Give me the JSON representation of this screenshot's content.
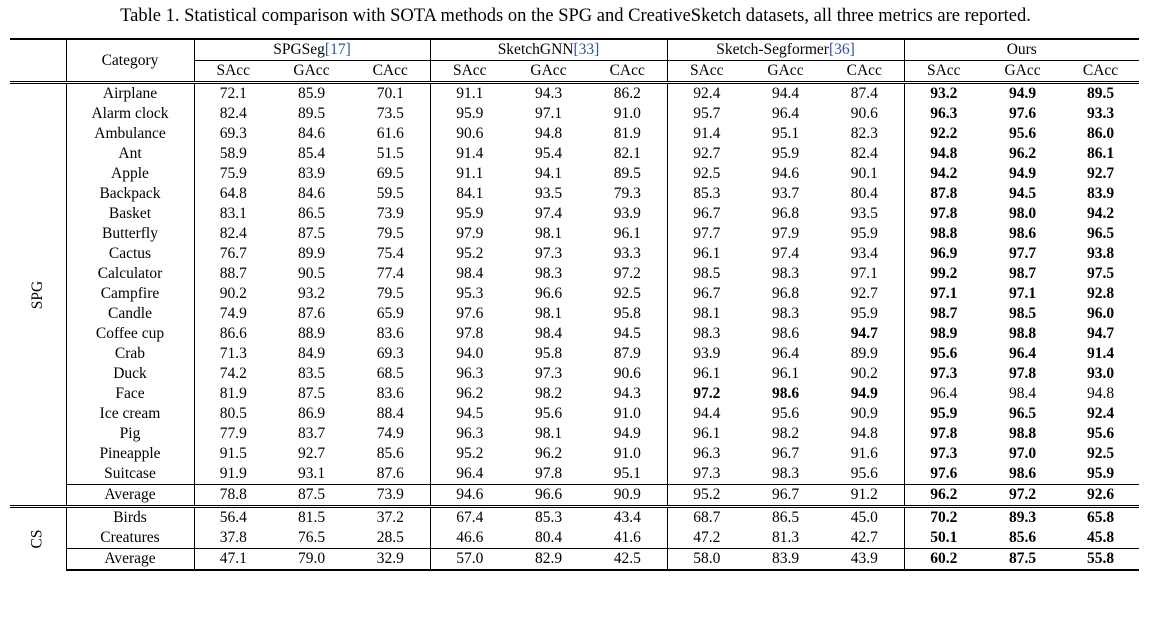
{
  "caption": "Table 1. Statistical comparison with SOTA methods on the SPG and CreativeSketch datasets, all three metrics are reported.",
  "header": {
    "category": "Category",
    "methods": [
      {
        "name": "SPGSeg",
        "cite": "[17]"
      },
      {
        "name": "SketchGNN",
        "cite": "[33]"
      },
      {
        "name": "Sketch-Segformer",
        "cite": "[36]"
      },
      {
        "name": "Ours",
        "cite": ""
      }
    ],
    "metrics": [
      "SAcc",
      "GAcc",
      "CAcc"
    ]
  },
  "groups": [
    {
      "label": "SPG",
      "rows": [
        {
          "category": "Airplane",
          "values": [
            "72.1",
            "85.9",
            "70.1",
            "91.1",
            "94.3",
            "86.2",
            "92.4",
            "94.4",
            "87.4",
            "93.2",
            "94.9",
            "89.5"
          ],
          "bold": [
            9,
            10,
            11
          ]
        },
        {
          "category": "Alarm clock",
          "values": [
            "82.4",
            "89.5",
            "73.5",
            "95.9",
            "97.1",
            "91.0",
            "95.7",
            "96.4",
            "90.6",
            "96.3",
            "97.6",
            "93.3"
          ],
          "bold": [
            9,
            10,
            11
          ]
        },
        {
          "category": "Ambulance",
          "values": [
            "69.3",
            "84.6",
            "61.6",
            "90.6",
            "94.8",
            "81.9",
            "91.4",
            "95.1",
            "82.3",
            "92.2",
            "95.6",
            "86.0"
          ],
          "bold": [
            9,
            10,
            11
          ]
        },
        {
          "category": "Ant",
          "values": [
            "58.9",
            "85.4",
            "51.5",
            "91.4",
            "95.4",
            "82.1",
            "92.7",
            "95.9",
            "82.4",
            "94.8",
            "96.2",
            "86.1"
          ],
          "bold": [
            9,
            10,
            11
          ]
        },
        {
          "category": "Apple",
          "values": [
            "75.9",
            "83.9",
            "69.5",
            "91.1",
            "94.1",
            "89.5",
            "92.5",
            "94.6",
            "90.1",
            "94.2",
            "94.9",
            "92.7"
          ],
          "bold": [
            9,
            10,
            11
          ]
        },
        {
          "category": "Backpack",
          "values": [
            "64.8",
            "84.6",
            "59.5",
            "84.1",
            "93.5",
            "79.3",
            "85.3",
            "93.7",
            "80.4",
            "87.8",
            "94.5",
            "83.9"
          ],
          "bold": [
            9,
            10,
            11
          ]
        },
        {
          "category": "Basket",
          "values": [
            "83.1",
            "86.5",
            "73.9",
            "95.9",
            "97.4",
            "93.9",
            "96.7",
            "96.8",
            "93.5",
            "97.8",
            "98.0",
            "94.2"
          ],
          "bold": [
            9,
            10,
            11
          ]
        },
        {
          "category": "Butterfly",
          "values": [
            "82.4",
            "87.5",
            "79.5",
            "97.9",
            "98.1",
            "96.1",
            "97.7",
            "97.9",
            "95.9",
            "98.8",
            "98.6",
            "96.5"
          ],
          "bold": [
            9,
            10,
            11
          ]
        },
        {
          "category": "Cactus",
          "values": [
            "76.7",
            "89.9",
            "75.4",
            "95.2",
            "97.3",
            "93.3",
            "96.1",
            "97.4",
            "93.4",
            "96.9",
            "97.7",
            "93.8"
          ],
          "bold": [
            9,
            10,
            11
          ]
        },
        {
          "category": "Calculator",
          "values": [
            "88.7",
            "90.5",
            "77.4",
            "98.4",
            "98.3",
            "97.2",
            "98.5",
            "98.3",
            "97.1",
            "99.2",
            "98.7",
            "97.5"
          ],
          "bold": [
            9,
            10,
            11
          ]
        },
        {
          "category": "Campfire",
          "values": [
            "90.2",
            "93.2",
            "79.5",
            "95.3",
            "96.6",
            "92.5",
            "96.7",
            "96.8",
            "92.7",
            "97.1",
            "97.1",
            "92.8"
          ],
          "bold": [
            9,
            10,
            11
          ]
        },
        {
          "category": "Candle",
          "values": [
            "74.9",
            "87.6",
            "65.9",
            "97.6",
            "98.1",
            "95.8",
            "98.1",
            "98.3",
            "95.9",
            "98.7",
            "98.5",
            "96.0"
          ],
          "bold": [
            9,
            10,
            11
          ]
        },
        {
          "category": "Coffee cup",
          "values": [
            "86.6",
            "88.9",
            "83.6",
            "97.8",
            "98.4",
            "94.5",
            "98.3",
            "98.6",
            "94.7",
            "98.9",
            "98.8",
            "94.7"
          ],
          "bold": [
            8,
            9,
            10,
            11
          ]
        },
        {
          "category": "Crab",
          "values": [
            "71.3",
            "84.9",
            "69.3",
            "94.0",
            "95.8",
            "87.9",
            "93.9",
            "96.4",
            "89.9",
            "95.6",
            "96.4",
            "91.4"
          ],
          "bold": [
            9,
            10,
            11
          ]
        },
        {
          "category": "Duck",
          "values": [
            "74.2",
            "83.5",
            "68.5",
            "96.3",
            "97.3",
            "90.6",
            "96.1",
            "96.1",
            "90.2",
            "97.3",
            "97.8",
            "93.0"
          ],
          "bold": [
            9,
            10,
            11
          ]
        },
        {
          "category": "Face",
          "values": [
            "81.9",
            "87.5",
            "83.6",
            "96.2",
            "98.2",
            "94.3",
            "97.2",
            "98.6",
            "94.9",
            "96.4",
            "98.4",
            "94.8"
          ],
          "bold": [
            6,
            7,
            8
          ]
        },
        {
          "category": "Ice cream",
          "values": [
            "80.5",
            "86.9",
            "88.4",
            "94.5",
            "95.6",
            "91.0",
            "94.4",
            "95.6",
            "90.9",
            "95.9",
            "96.5",
            "92.4"
          ],
          "bold": [
            9,
            10,
            11
          ]
        },
        {
          "category": "Pig",
          "values": [
            "77.9",
            "83.7",
            "74.9",
            "96.3",
            "98.1",
            "94.9",
            "96.1",
            "98.2",
            "94.8",
            "97.8",
            "98.8",
            "95.6"
          ],
          "bold": [
            9,
            10,
            11
          ]
        },
        {
          "category": "Pineapple",
          "values": [
            "91.5",
            "92.7",
            "85.6",
            "95.2",
            "96.2",
            "91.0",
            "96.3",
            "96.7",
            "91.6",
            "97.3",
            "97.0",
            "92.5"
          ],
          "bold": [
            9,
            10,
            11
          ]
        },
        {
          "category": "Suitcase",
          "values": [
            "91.9",
            "93.1",
            "87.6",
            "96.4",
            "97.8",
            "95.1",
            "97.3",
            "98.3",
            "95.6",
            "97.6",
            "98.6",
            "95.9"
          ],
          "bold": [
            9,
            10,
            11
          ]
        }
      ],
      "average": {
        "category": "Average",
        "values": [
          "78.8",
          "87.5",
          "73.9",
          "94.6",
          "96.6",
          "90.9",
          "95.2",
          "96.7",
          "91.2",
          "96.2",
          "97.2",
          "92.6"
        ],
        "bold": [
          9,
          10,
          11
        ]
      }
    },
    {
      "label": "CS",
      "rows": [
        {
          "category": "Birds",
          "values": [
            "56.4",
            "81.5",
            "37.2",
            "67.4",
            "85.3",
            "43.4",
            "68.7",
            "86.5",
            "45.0",
            "70.2",
            "89.3",
            "65.8"
          ],
          "bold": [
            9,
            10,
            11
          ]
        },
        {
          "category": "Creatures",
          "values": [
            "37.8",
            "76.5",
            "28.5",
            "46.6",
            "80.4",
            "41.6",
            "47.2",
            "81.3",
            "42.7",
            "50.1",
            "85.6",
            "45.8"
          ],
          "bold": [
            9,
            10,
            11
          ]
        }
      ],
      "average": {
        "category": "Average",
        "values": [
          "47.1",
          "79.0",
          "32.9",
          "57.0",
          "82.9",
          "42.5",
          "58.0",
          "83.9",
          "43.9",
          "60.2",
          "87.5",
          "55.8"
        ],
        "bold": [
          9,
          10,
          11
        ]
      }
    }
  ]
}
